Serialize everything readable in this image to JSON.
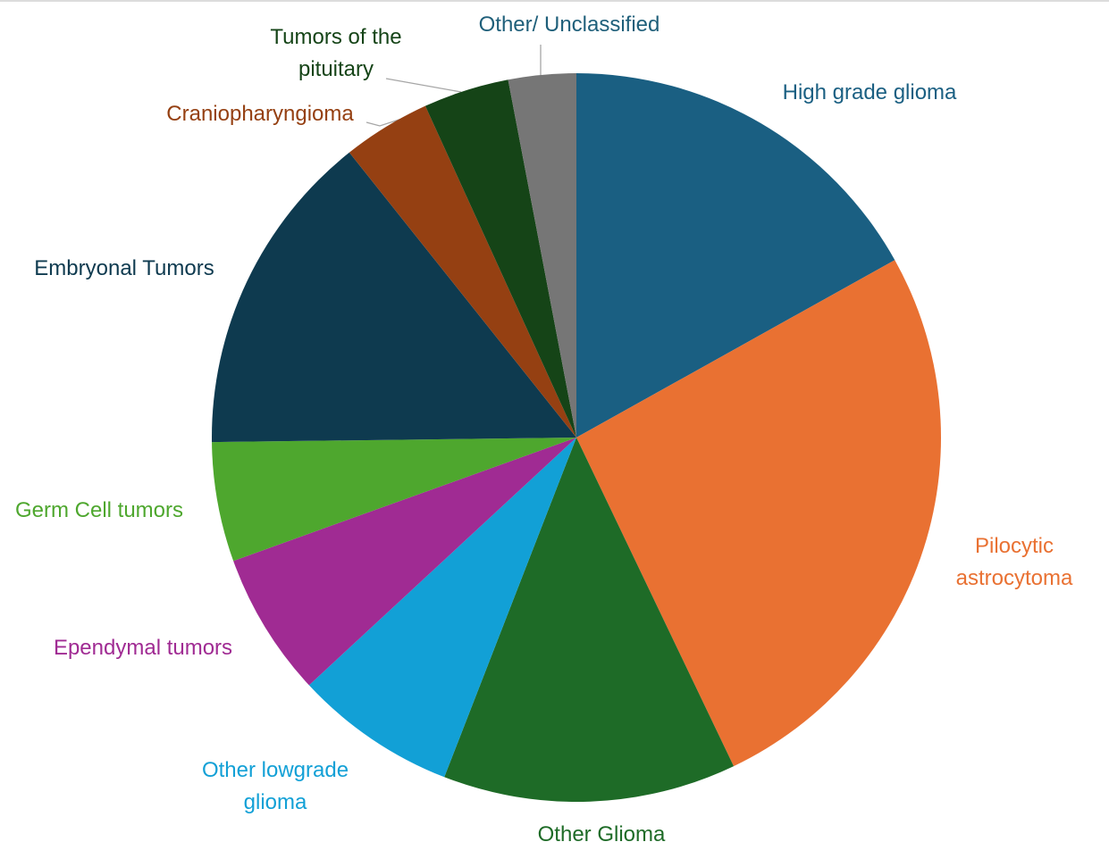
{
  "chart_data": {
    "type": "pie",
    "categories": [
      "High grade glioma",
      "Pilocytic astrocytoma",
      "Other Glioma",
      "Other lowgrade glioma",
      "Ependymal tumors",
      "Germ Cell tumors",
      "Embryonal Tumors",
      "Craniopharyngioma",
      "Tumors of the pituitary",
      "Other/ Unclassified"
    ],
    "values": [
      16.9,
      26,
      13,
      7.2,
      6.4,
      5.3,
      14.5,
      3.9,
      3.8,
      3.0
    ],
    "colors": [
      "#1a5f82",
      "#e97132",
      "#1e6b27",
      "#12a0d6",
      "#a02b93",
      "#4ea72e",
      "#0e3a4f",
      "#954012",
      "#154417",
      "#767676"
    ]
  }
}
